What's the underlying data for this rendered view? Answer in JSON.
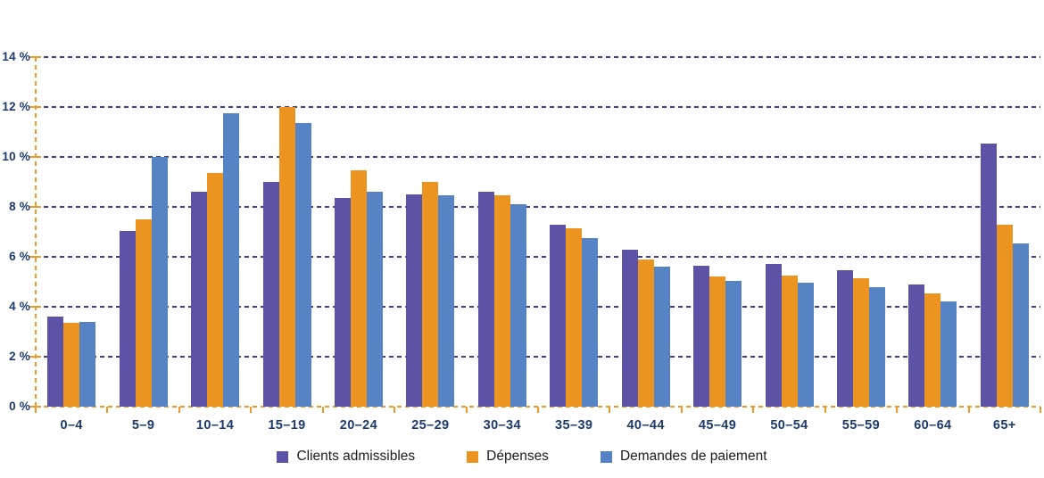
{
  "chart_data": {
    "type": "bar",
    "title": "",
    "xlabel": "",
    "ylabel": "",
    "categories": [
      "0–4",
      "5–9",
      "10–14",
      "15–19",
      "20–24",
      "25–29",
      "30–34",
      "35–39",
      "40–44",
      "45–49",
      "50–54",
      "55–59",
      "60–64",
      "65+"
    ],
    "series": [
      {
        "name": "Clients admissibles",
        "color": "#5C52A6",
        "values": [
          3.6,
          7.05,
          8.6,
          9.0,
          8.35,
          8.5,
          8.6,
          7.3,
          6.3,
          5.65,
          5.7,
          5.45,
          4.9,
          10.55
        ]
      },
      {
        "name": "Dépenses",
        "color": "#EC9420",
        "values": [
          3.35,
          7.5,
          9.35,
          12.0,
          9.45,
          9.0,
          8.45,
          7.15,
          5.9,
          5.2,
          5.25,
          5.15,
          4.55,
          7.3
        ]
      },
      {
        "name": "Demandes de paiement",
        "color": "#5583C4",
        "values": [
          3.4,
          10.0,
          11.75,
          11.35,
          8.6,
          8.45,
          8.1,
          6.75,
          5.6,
          5.05,
          4.95,
          4.8,
          4.2,
          6.55
        ]
      }
    ],
    "ylim": [
      0,
      14
    ],
    "ytick_step": 2,
    "ytick_suffix": " %",
    "grid": "dashed-horizontal",
    "legend_position": "bottom",
    "colors": {
      "axis": "#F0992B",
      "gridline": "#3D3D96",
      "axis_labels": "#1D3A6E",
      "legend_text": "#1C1C1C"
    }
  }
}
